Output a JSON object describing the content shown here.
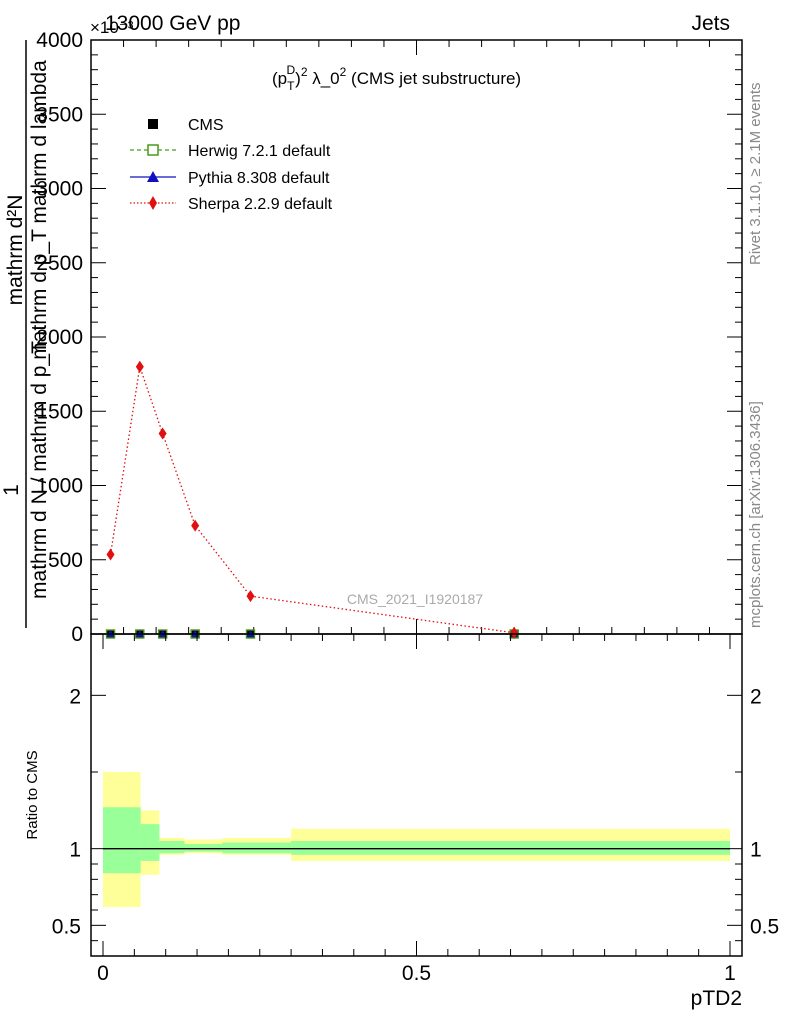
{
  "header": {
    "left": "13000 GeV pp",
    "right": "Jets"
  },
  "side_labels": {
    "rivet": "Rivet 3.1.10, ≥ 2.1M events",
    "mcplots": "mcplots.cern.ch [arXiv:1306.3436]"
  },
  "watermark": "CMS_2021_I1920187",
  "colors": {
    "cms": "#000000",
    "herwig": "#4a9a1a",
    "pythia": "#1010c0",
    "sherpa": "#e01010",
    "band_inner": "#99ff99",
    "band_outer": "#ffff99"
  },
  "chart_data": [
    {
      "type": "line",
      "title": "(p_T^D)^2 λ_0^2 (CMS jet substructure)",
      "title_parts": {
        "pre": "(p",
        "sub": "T",
        "sup": "D",
        "mid": ")",
        "sup2": "2",
        "lam": " λ_0",
        "sup3": "2",
        "post": " (CMS jet substructure)"
      },
      "xlabel": "pTD2",
      "ylabel_top": "mathrm d²N",
      "ylabel_mid": "mathrm d p_T mathrm d lambda",
      "ylabel_one": "1",
      "ylabel_bottom": "mathrm d N / mathrm d p_T",
      "multiplier": "×10⁻³",
      "xlim": [
        0,
        1
      ],
      "ylim": [
        0,
        4000
      ],
      "y_ticks": [
        0,
        500,
        1000,
        1500,
        2000,
        2500,
        3000,
        3500,
        4000
      ],
      "y_tick_labels": [
        "0",
        "500",
        "1000",
        "1500",
        "2000",
        "2500",
        "3000",
        "3500",
        "4000"
      ],
      "legend_position": "top-left",
      "series": [
        {
          "name": "CMS",
          "marker": "square",
          "x": [
            0.03,
            0.075,
            0.11,
            0.16,
            0.245,
            0.65
          ],
          "y": [
            0,
            0,
            0,
            0,
            0,
            0
          ]
        },
        {
          "name": "Herwig 7.2.1 default",
          "marker": "open-square",
          "x": [
            0.03,
            0.075,
            0.11,
            0.16,
            0.245,
            0.65
          ],
          "y": [
            0,
            0,
            0,
            0,
            0,
            0
          ]
        },
        {
          "name": "Pythia 8.308 default",
          "marker": "triangle",
          "x": [
            0.03,
            0.075,
            0.11,
            0.16,
            0.245,
            0.65
          ],
          "y": [
            0,
            0,
            0,
            0,
            0,
            0
          ]
        },
        {
          "name": "Sherpa 2.2.9 default",
          "marker": "diamond",
          "x": [
            0.03,
            0.075,
            0.11,
            0.16,
            0.245,
            0.65
          ],
          "y": [
            535,
            1800,
            1350,
            730,
            255,
            8
          ]
        }
      ]
    },
    {
      "type": "area",
      "ylabel": "Ratio to CMS",
      "xlabel": "pTD2",
      "xlim": [
        0,
        1
      ],
      "ylim": [
        0.3,
        2.4
      ],
      "x_ticks": [
        0,
        0.5,
        1
      ],
      "x_tick_labels": [
        "0",
        "0.5",
        "1"
      ],
      "y_ticks": [
        0.5,
        1,
        2
      ],
      "y_tick_labels": [
        "0.5",
        "1",
        "2"
      ],
      "bins": [
        {
          "lo": 0.0,
          "hi": 0.06,
          "inner": [
            0.84,
            1.27
          ],
          "outer": [
            0.62,
            1.5
          ]
        },
        {
          "lo": 0.06,
          "hi": 0.09,
          "inner": [
            0.92,
            1.16
          ],
          "outer": [
            0.83,
            1.25
          ]
        },
        {
          "lo": 0.09,
          "hi": 0.13,
          "inner": [
            0.97,
            1.05
          ],
          "outer": [
            0.96,
            1.07
          ]
        },
        {
          "lo": 0.13,
          "hi": 0.19,
          "inner": [
            0.98,
            1.03
          ],
          "outer": [
            0.97,
            1.06
          ]
        },
        {
          "lo": 0.19,
          "hi": 0.3,
          "inner": [
            0.97,
            1.04
          ],
          "outer": [
            0.96,
            1.07
          ]
        },
        {
          "lo": 0.3,
          "hi": 1.0,
          "inner": [
            0.96,
            1.05
          ],
          "outer": [
            0.92,
            1.13
          ]
        }
      ]
    }
  ]
}
